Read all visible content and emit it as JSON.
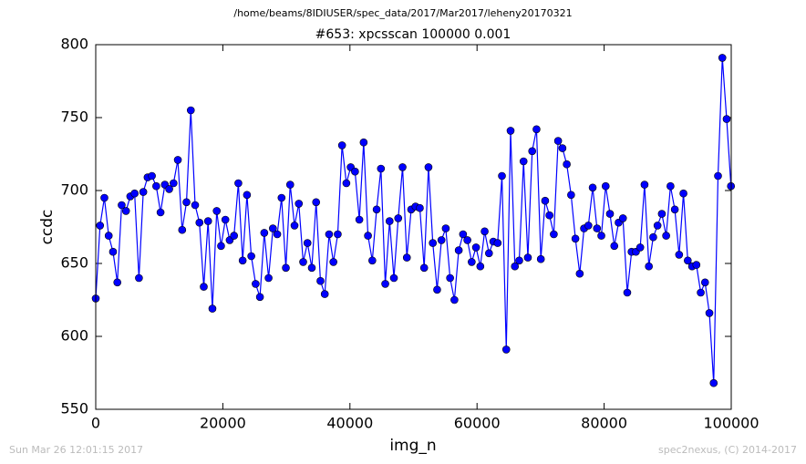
{
  "chart_data": {
    "type": "line",
    "suptitle": "/home/beams/8IDIUSER/spec_data/2017/Mar2017/leheny20170321",
    "title": "#653: xpcsscan 100000 0.001",
    "xlabel": "img_n",
    "ylabel": "ccdc",
    "footer_left": "Sun Mar 26 12:01:15 2017",
    "footer_right": "spec2nexus, (C) 2014-2017",
    "xlim": [
      0,
      100000
    ],
    "xticks": [
      0,
      20000,
      40000,
      60000,
      80000,
      100000
    ],
    "ylim": [
      550,
      800
    ],
    "yticks": [
      550,
      600,
      650,
      700,
      750,
      800
    ],
    "grid": false,
    "x": [
      0,
      680,
      1360,
      2040,
      2720,
      3400,
      4080,
      4760,
      5440,
      6120,
      6800,
      7480,
      8160,
      8840,
      9520,
      10200,
      10880,
      11560,
      12240,
      12920,
      13600,
      14280,
      14960,
      15640,
      16320,
      17000,
      17680,
      18360,
      19040,
      19720,
      20400,
      21080,
      21760,
      22440,
      23120,
      23800,
      24480,
      25160,
      25840,
      26520,
      27200,
      27880,
      28560,
      29240,
      29920,
      30600,
      31280,
      31960,
      32640,
      33320,
      34000,
      34680,
      35360,
      36040,
      36720,
      37400,
      38080,
      38760,
      39440,
      40120,
      40800,
      41480,
      42160,
      42840,
      43520,
      44200,
      44880,
      45560,
      46240,
      46920,
      47600,
      48280,
      48960,
      49640,
      50320,
      51000,
      51680,
      52360,
      53040,
      53720,
      54400,
      55080,
      55760,
      56440,
      57120,
      57800,
      58480,
      59160,
      59840,
      60520,
      61200,
      61880,
      62560,
      63240,
      63920,
      64600,
      65280,
      65960,
      66640,
      67320,
      68000,
      68680,
      69360,
      70040,
      70720,
      71400,
      72080,
      72760,
      73440,
      74120,
      74800,
      75480,
      76160,
      76840,
      77520,
      78200,
      78880,
      79560,
      80240,
      80920,
      81600,
      82280,
      82960,
      83640,
      84320,
      85000,
      85680,
      86360,
      87040,
      87720,
      88400,
      89080,
      89760,
      90440,
      91120,
      91800,
      92480,
      93160,
      93840,
      94520,
      95200,
      95880,
      96560,
      97240,
      97920,
      98600,
      99280,
      99960
    ],
    "series": [
      {
        "name": "ccdc",
        "color": "#0000ff",
        "values": [
          626,
          676,
          695,
          669,
          658,
          637,
          690,
          686,
          696,
          698,
          640,
          699,
          709,
          710,
          703,
          685,
          704,
          701,
          705,
          721,
          673,
          692,
          755,
          690,
          678,
          634,
          679,
          619,
          686,
          662,
          680,
          666,
          669,
          705,
          652,
          697,
          655,
          636,
          627,
          671,
          640,
          674,
          670,
          695,
          647,
          704,
          676,
          691,
          651,
          664,
          647,
          692,
          638,
          629,
          670,
          651,
          670,
          731,
          705,
          716,
          713,
          680,
          733,
          669,
          652,
          687,
          715,
          636,
          679,
          640,
          681,
          716,
          654,
          687,
          689,
          688,
          647,
          716,
          664,
          632,
          666,
          674,
          640,
          625,
          659,
          670,
          666,
          651,
          661,
          648,
          672,
          657,
          665,
          664,
          710,
          591,
          741,
          648,
          652,
          720,
          654,
          727,
          742,
          653,
          693,
          683,
          670,
          734,
          729,
          718,
          697,
          667,
          643,
          674,
          676,
          702,
          674,
          669,
          703,
          684,
          662,
          678,
          681,
          630,
          658,
          658,
          661,
          704,
          648,
          668,
          676,
          684,
          669,
          703,
          687,
          656,
          698,
          652,
          648,
          649,
          630,
          637,
          616,
          568,
          710,
          791,
          749,
          703
        ]
      }
    ]
  }
}
